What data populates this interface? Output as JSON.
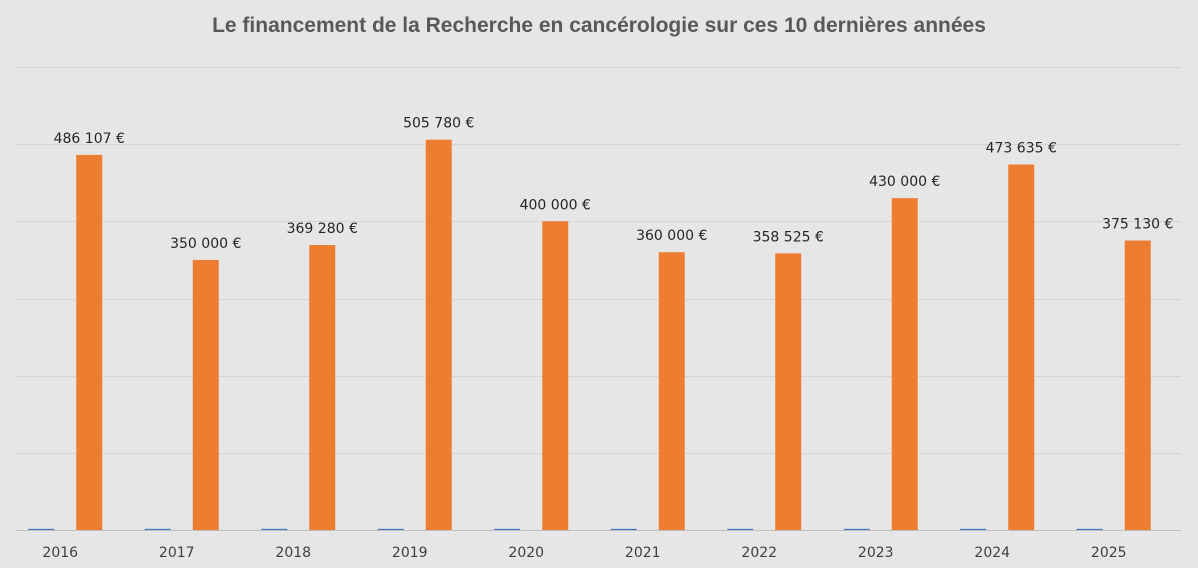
{
  "chart_data": {
    "type": "bar",
    "title": "Le financement de la Recherche en cancérologie sur ces 10 dernières années",
    "xlabel": "",
    "ylabel": "",
    "categories": [
      "2016",
      "2017",
      "2018",
      "2019",
      "2020",
      "2021",
      "2022",
      "2023",
      "2024",
      "2025"
    ],
    "series": [
      {
        "name": "secondary",
        "color": "#4472c4",
        "values": [
          1500,
          1500,
          1500,
          1500,
          1500,
          1500,
          1500,
          1500,
          1500,
          1500
        ],
        "labels": [
          "",
          "",
          "",
          "",
          "",
          "",
          "",
          "",
          "",
          ""
        ]
      },
      {
        "name": "financement",
        "color": "#ed7d31",
        "values": [
          486107,
          350000,
          369280,
          505780,
          400000,
          360000,
          358525,
          430000,
          473635,
          375130
        ],
        "labels": [
          "486 107 €",
          "350 000 €",
          "369 280 €",
          "505 780 €",
          "400 000 €",
          "360 000 €",
          "358 525 €",
          "430 000 €",
          "473 635 €",
          "375 130 €"
        ]
      }
    ],
    "ylim": [
      0,
      600000
    ],
    "gridlines": [
      0,
      100000,
      200000,
      300000,
      400000,
      500000,
      600000
    ],
    "grid": true,
    "legend": "none"
  },
  "colors": {
    "background": "#e6e6e6",
    "gridline": "#d4d4d4",
    "axis": "#bfbfbf"
  }
}
